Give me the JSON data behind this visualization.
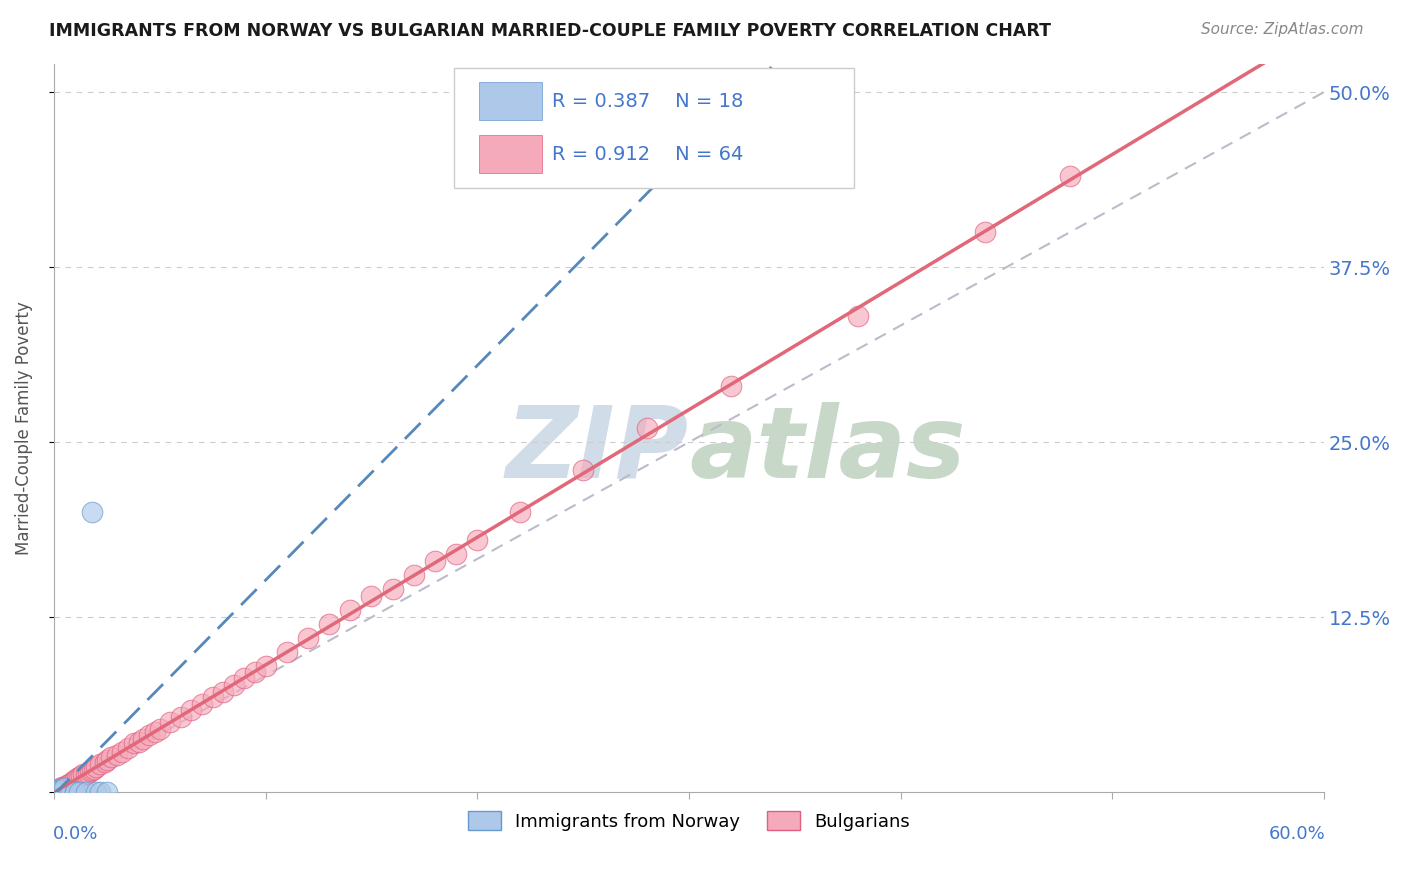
{
  "title": "IMMIGRANTS FROM NORWAY VS BULGARIAN MARRIED-COUPLE FAMILY POVERTY CORRELATION CHART",
  "source_text": "Source: ZipAtlas.com",
  "ylabel": "Married-Couple Family Poverty",
  "xlim": [
    0.0,
    0.6
  ],
  "ylim": [
    0.0,
    0.52
  ],
  "ytick_vals": [
    0.0,
    0.125,
    0.25,
    0.375,
    0.5
  ],
  "ytick_labels": [
    "",
    "12.5%",
    "25.0%",
    "37.5%",
    "50.0%"
  ],
  "xtick_vals": [
    0.0,
    0.1,
    0.2,
    0.3,
    0.4,
    0.5,
    0.6
  ],
  "norway_R": 0.387,
  "norway_N": 18,
  "bulgaria_R": 0.912,
  "bulgaria_N": 64,
  "norway_fill_color": "#adc8e8",
  "norway_edge_color": "#6699cc",
  "bulgaria_fill_color": "#f5aabb",
  "bulgaria_edge_color": "#e06080",
  "norway_line_color": "#5588bb",
  "bulgaria_line_color": "#e06878",
  "ref_line_color": "#bbbbcc",
  "watermark_color": "#d0dce8",
  "norway_x": [
    0.0,
    0.0,
    0.0,
    0.0,
    0.0,
    0.002,
    0.003,
    0.005,
    0.007,
    0.008,
    0.01,
    0.01,
    0.012,
    0.015,
    0.018,
    0.02,
    0.022,
    0.025
  ],
  "norway_y": [
    0.0,
    0.0,
    0.0,
    0.0,
    0.002,
    0.0,
    0.002,
    0.003,
    0.0,
    0.002,
    0.0,
    0.0,
    0.0,
    0.0,
    0.2,
    0.0,
    0.0,
    0.0
  ],
  "bulgaria_x": [
    0.0,
    0.0,
    0.0,
    0.0,
    0.0,
    0.002,
    0.003,
    0.004,
    0.005,
    0.006,
    0.007,
    0.008,
    0.009,
    0.01,
    0.011,
    0.012,
    0.013,
    0.014,
    0.015,
    0.016,
    0.017,
    0.018,
    0.019,
    0.02,
    0.022,
    0.024,
    0.025,
    0.027,
    0.03,
    0.032,
    0.035,
    0.038,
    0.04,
    0.042,
    0.045,
    0.048,
    0.05,
    0.055,
    0.06,
    0.065,
    0.07,
    0.075,
    0.08,
    0.085,
    0.09,
    0.095,
    0.1,
    0.11,
    0.12,
    0.13,
    0.14,
    0.15,
    0.16,
    0.17,
    0.18,
    0.19,
    0.2,
    0.22,
    0.25,
    0.28,
    0.32,
    0.38,
    0.44,
    0.48
  ],
  "bulgaria_y": [
    0.0,
    0.0,
    0.0,
    0.0,
    0.0,
    0.002,
    0.003,
    0.004,
    0.004,
    0.005,
    0.006,
    0.007,
    0.008,
    0.009,
    0.01,
    0.011,
    0.012,
    0.013,
    0.013,
    0.014,
    0.015,
    0.016,
    0.017,
    0.018,
    0.02,
    0.022,
    0.023,
    0.025,
    0.027,
    0.029,
    0.032,
    0.035,
    0.036,
    0.038,
    0.041,
    0.043,
    0.045,
    0.05,
    0.054,
    0.059,
    0.063,
    0.068,
    0.072,
    0.077,
    0.082,
    0.086,
    0.09,
    0.1,
    0.11,
    0.12,
    0.13,
    0.14,
    0.145,
    0.155,
    0.165,
    0.17,
    0.18,
    0.2,
    0.23,
    0.26,
    0.29,
    0.34,
    0.4,
    0.44
  ]
}
